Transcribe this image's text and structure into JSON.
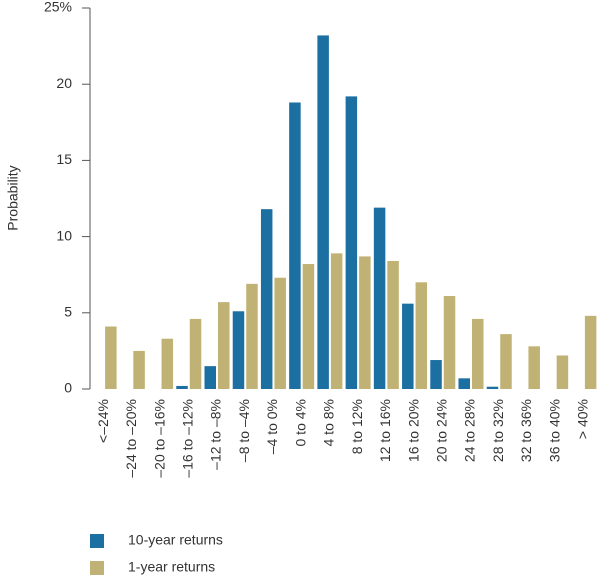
{
  "chart_data": {
    "type": "bar",
    "y_label": "Probability",
    "categories": [
      "<–24%",
      "–24 to –20%",
      "–20 to –16%",
      "–16 to –12%",
      "–12 to –8%",
      "–8 to –4%",
      "–4 to 0%",
      "0 to 4%",
      "4 to 8%",
      "8 to 12%",
      "12 to 16%",
      "16 to 20%",
      "20 to 24%",
      "24 to 28%",
      "28 to 32%",
      "32 to 36%",
      "36 to 40%",
      "> 40%"
    ],
    "series": [
      {
        "name": "10-year returns",
        "color": "#1b6fa1",
        "values": [
          0,
          0,
          0,
          0.2,
          1.5,
          5.1,
          11.8,
          18.8,
          23.2,
          19.2,
          11.9,
          5.6,
          1.9,
          0.7,
          0.15,
          0,
          0,
          0
        ]
      },
      {
        "name": "1-year returns",
        "color": "#c0b274",
        "values": [
          4.1,
          2.5,
          3.3,
          4.6,
          5.7,
          6.9,
          7.3,
          8.2,
          8.9,
          8.7,
          8.4,
          7.0,
          6.1,
          4.6,
          3.6,
          2.8,
          2.2,
          4.8
        ]
      }
    ],
    "ylim": [
      0,
      25
    ],
    "yticks": [
      0,
      5,
      10,
      15,
      20,
      {
        "value": 25,
        "label": "25%"
      }
    ]
  }
}
